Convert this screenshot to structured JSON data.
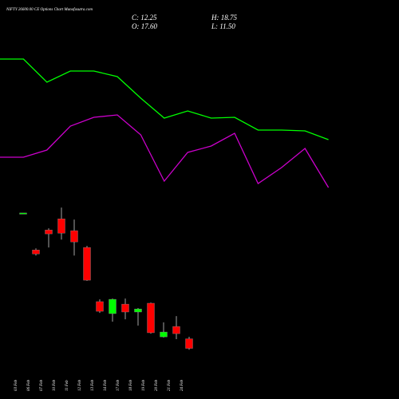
{
  "chart_data": [
    {
      "type": "candlestick",
      "title": "NIFTY 26600.00 CE Options Chart Munafasutra.com",
      "annotations": [
        "C: 12.25",
        "H: 18.75",
        "O: 17.60",
        "L: 11.50"
      ],
      "categories": [
        "03 Feb",
        "06 Feb",
        "07 Feb",
        "10 Feb",
        "11 Feb",
        "12 Feb",
        "13 Feb",
        "14 Feb",
        "17 Feb",
        "18 Feb",
        "19 Feb",
        "20 Feb",
        "21 Feb",
        "24 Feb"
      ],
      "open": [
        88,
        67.3,
        78.5,
        84.7,
        78.1,
        68.7,
        38.4,
        31.7,
        37.0,
        32.6,
        37.5,
        18.7,
        24.5,
        17.6
      ],
      "high": [
        88,
        68.2,
        79.4,
        91.0,
        84.3,
        69.6,
        39.7,
        40.1,
        40.1,
        34.8,
        37.9,
        26.8,
        30.3,
        18.75
      ],
      "low": [
        88,
        64.2,
        68.7,
        73.1,
        64.2,
        50.0,
        32.1,
        27.2,
        28.5,
        25.0,
        20.5,
        18.3,
        17.4,
        11.5
      ],
      "close": [
        88,
        65.1,
        76.3,
        76.7,
        71.8,
        50.4,
        33.0,
        39.7,
        32.6,
        34.3,
        21.0,
        21.4,
        20.5,
        12.25
      ],
      "up_color": "#00ff00",
      "down_color": "#ff0000",
      "ylim": [
        0,
        100
      ]
    },
    {
      "type": "line",
      "categories": [
        null,
        null,
        null,
        null,
        null,
        null,
        null,
        null,
        null,
        null,
        null,
        null,
        null,
        null,
        null
      ],
      "series": [
        {
          "color": "#00ff00",
          "values": [
            226,
            226,
            197,
            211,
            211,
            204,
            177,
            152,
            161,
            152,
            153,
            137,
            137,
            136,
            125
          ]
        },
        {
          "color": "#cc00cc",
          "values": [
            103,
            103,
            112,
            142,
            153,
            156,
            131,
            73,
            109,
            117,
            133,
            70,
            90,
            114,
            65
          ]
        }
      ],
      "ylim": [
        0,
        300
      ]
    }
  ]
}
